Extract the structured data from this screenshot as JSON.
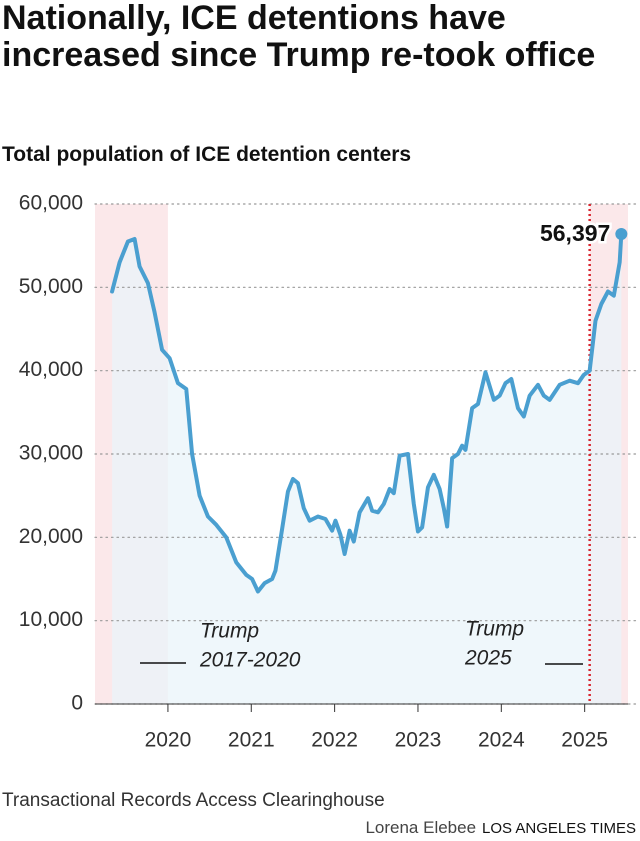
{
  "chart_data": {
    "type": "line",
    "title": "Nationally, ICE detentions have increased since Trump re-took office",
    "subtitle": "Total population of ICE detention centers",
    "x": [
      2019.33,
      2019.42,
      2019.52,
      2019.6,
      2019.66,
      2019.76,
      2019.84,
      2019.93,
      2020.02,
      2020.12,
      2020.22,
      2020.29,
      2020.38,
      2020.48,
      2020.58,
      2020.7,
      2020.82,
      2020.94,
      2021.01,
      2021.08,
      2021.16,
      2021.25,
      2021.29,
      2021.37,
      2021.44,
      2021.5,
      2021.56,
      2021.63,
      2021.7,
      2021.8,
      2021.89,
      2021.97,
      2022.01,
      2022.07,
      2022.12,
      2022.18,
      2022.23,
      2022.3,
      2022.4,
      2022.45,
      2022.52,
      2022.59,
      2022.66,
      2022.71,
      2022.78,
      2022.88,
      2022.95,
      2023.0,
      2023.05,
      2023.12,
      2023.19,
      2023.26,
      2023.31,
      2023.35,
      2023.41,
      2023.48,
      2023.53,
      2023.57,
      2023.65,
      2023.72,
      2023.81,
      2023.91,
      2023.98,
      2024.05,
      2024.12,
      2024.2,
      2024.27,
      2024.34,
      2024.44,
      2024.51,
      2024.58,
      2024.7,
      2024.82,
      2024.92,
      2024.99,
      2025.06,
      2025.13,
      2025.2,
      2025.28,
      2025.35,
      2025.42,
      2025.44
    ],
    "values": [
      49500,
      53000,
      55500,
      55800,
      52500,
      50500,
      47000,
      42500,
      41500,
      38500,
      37800,
      30000,
      25000,
      22500,
      21500,
      20000,
      17000,
      15500,
      15000,
      13500,
      14500,
      15000,
      16000,
      21000,
      25500,
      27000,
      26500,
      23500,
      22000,
      22500,
      22200,
      20800,
      22000,
      20300,
      18000,
      20800,
      19500,
      23000,
      24700,
      23200,
      23000,
      24000,
      25800,
      25300,
      29800,
      30000,
      24000,
      20700,
      21200,
      26000,
      27500,
      25800,
      23500,
      21300,
      29500,
      30000,
      31000,
      30500,
      35500,
      36000,
      39800,
      36500,
      37000,
      38500,
      39000,
      35500,
      34500,
      37000,
      38300,
      37000,
      36500,
      38300,
      38800,
      38500,
      39500,
      40000,
      46000,
      48000,
      49500,
      49000,
      53000,
      56397
    ],
    "value_labels": [
      null,
      null,
      null,
      null,
      null,
      null,
      null,
      null,
      null,
      null,
      null,
      null,
      null,
      null,
      null,
      null,
      null,
      null,
      null,
      null,
      null,
      null,
      null,
      null,
      null,
      null,
      null,
      null,
      null,
      null,
      null,
      null,
      null,
      null,
      null,
      null,
      null,
      null,
      null,
      null,
      null,
      null,
      null,
      null,
      null,
      null,
      null,
      null,
      null,
      null,
      null,
      null,
      null,
      null,
      null,
      null,
      null,
      null,
      null,
      null,
      null,
      null,
      null,
      null,
      null,
      null,
      null,
      null,
      null,
      null,
      null,
      null,
      null,
      null,
      null,
      null,
      null,
      null,
      null,
      null,
      null,
      "56,397"
    ],
    "color": "#4a9fd0",
    "area_color": "#e9f4f9",
    "xlim": [
      2019.125,
      2025.52
    ],
    "ylim": [
      0,
      60000
    ],
    "xticks": [
      2020,
      2021,
      2022,
      2023,
      2024,
      2025
    ],
    "yticks": [
      0,
      {
        "value": 10000,
        "label": "10,000"
      },
      {
        "value": 20000,
        "label": "20,000"
      },
      {
        "value": 30000,
        "label": "30,000"
      },
      {
        "value": 40000,
        "label": "40,000"
      },
      {
        "value": 50000,
        "label": "50,000"
      },
      {
        "value": 60000,
        "label": "60,000"
      }
    ],
    "grid": true,
    "shaded_ranges": [
      [
        2019.125,
        2020.0
      ],
      [
        2025.06,
        2025.52
      ]
    ],
    "shade_color": "#fbe8ea",
    "vline": 2025.06,
    "vline_color": "#d9262f",
    "annotations": [
      {
        "lines": [
          "Trump",
          "2017-2020"
        ]
      },
      {
        "lines": [
          "Trump",
          "2025"
        ]
      }
    ],
    "source": "Transactional Records Access Clearinghouse",
    "credit": "Lorena Elebee",
    "publisher": "LOS ANGELES TIMES"
  }
}
